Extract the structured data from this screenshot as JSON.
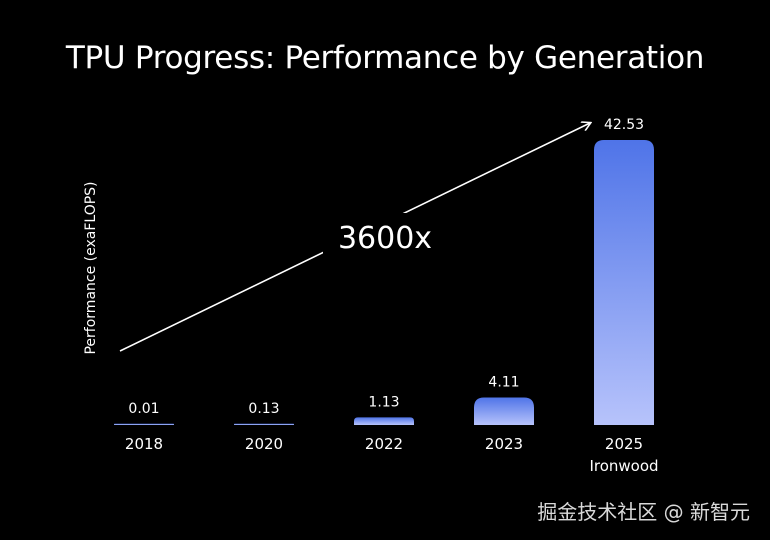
{
  "title": "TPU Progress: Performance by Generation",
  "chart_data": {
    "type": "bar",
    "title": "TPU Progress: Performance by Generation",
    "xlabel": "",
    "ylabel": "Performance (exaFLOPS)",
    "categories": [
      "2018",
      "2020",
      "2022",
      "2023",
      "2025"
    ],
    "sublabels": [
      "",
      "",
      "",
      "",
      "Ironwood"
    ],
    "values": [
      0.01,
      0.13,
      1.13,
      4.11,
      42.53
    ],
    "value_labels": [
      "0.01",
      "0.13",
      "1.13",
      "4.11",
      "42.53"
    ],
    "ylim": [
      0,
      42.53
    ],
    "annotation": "3600x",
    "grid": false,
    "legend": "none",
    "colors": {
      "bar_top": "#4f74e8",
      "bar_bottom": "#b7c3fb",
      "arrow": "#ffffff"
    }
  },
  "watermark": "掘金技术社区 @ 新智元"
}
